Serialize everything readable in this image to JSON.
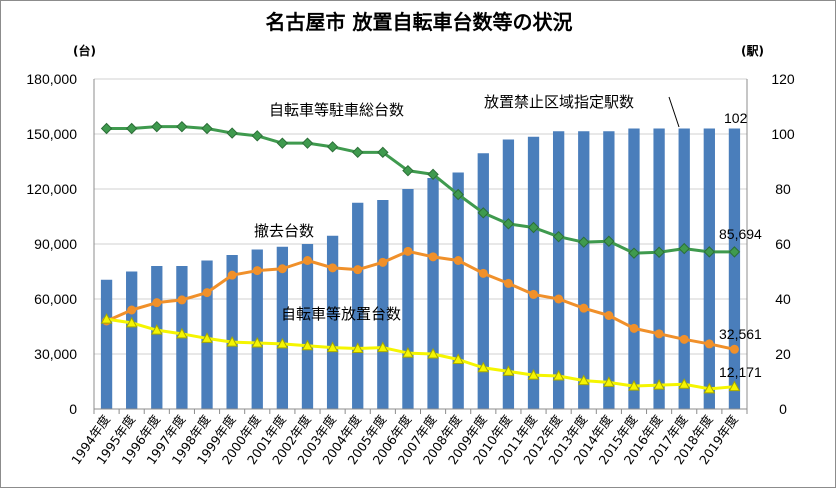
{
  "chart_data": {
    "type": "bar+line",
    "title": "名古屋市 放置自転車台数等の状況",
    "y_left_unit": "(台)",
    "y_right_unit": "(駅)",
    "ylim_left": [
      0,
      180000
    ],
    "ylim_right": [
      0,
      120
    ],
    "yticks_left": [
      "0",
      "30,000",
      "60,000",
      "90,000",
      "120,000",
      "150,000",
      "180,000"
    ],
    "yticks_right": [
      "0",
      "20",
      "40",
      "60",
      "80",
      "100",
      "120"
    ],
    "categories": [
      "1994年度",
      "1995年度",
      "1996年度",
      "1997年度",
      "1998年度",
      "1999年度",
      "2000年度",
      "2001年度",
      "2002年度",
      "2003年度",
      "2004年度",
      "2005年度",
      "2006年度",
      "2007年度",
      "2008年度",
      "2009年度",
      "2010年度",
      "2011年度",
      "2012年度",
      "2013年度",
      "2014年度",
      "2015年度",
      "2016年度",
      "2017年度",
      "2018年度",
      "2019年度"
    ],
    "grid": true,
    "series": [
      {
        "name": "放置禁止区域指定駅数",
        "type": "bar",
        "axis": "right",
        "color": "#4a7ebb",
        "values": [
          47,
          50,
          52,
          52,
          54,
          56,
          58,
          59,
          60,
          63,
          75,
          76,
          80,
          84,
          86,
          93,
          98,
          99,
          101,
          101,
          101,
          102,
          102,
          102,
          102,
          102
        ]
      },
      {
        "name": "自転車等駐車総台数",
        "type": "line",
        "axis": "left",
        "color": "#3f9a4e",
        "values": [
          153000,
          153000,
          154000,
          154000,
          153000,
          150500,
          149000,
          145000,
          145000,
          143000,
          140000,
          140000,
          130000,
          128000,
          117000,
          107000,
          101000,
          99000,
          94000,
          91000,
          91500,
          85000,
          85500,
          87500,
          85700,
          85694
        ]
      },
      {
        "name": "撤去台数",
        "type": "line",
        "axis": "left",
        "color": "#f0902a",
        "values": [
          48000,
          54000,
          58000,
          59500,
          63500,
          73000,
          75500,
          76500,
          81000,
          77000,
          76000,
          80000,
          86000,
          83000,
          81000,
          74000,
          68500,
          62500,
          60000,
          55000,
          51000,
          44000,
          41000,
          38000,
          35500,
          32561
        ]
      },
      {
        "name": "自転車等放置台数",
        "type": "line",
        "axis": "left",
        "color": "#f5f500",
        "values": [
          49000,
          47000,
          43000,
          41000,
          38500,
          36500,
          36000,
          35500,
          34500,
          33500,
          33000,
          33500,
          30500,
          30000,
          27000,
          22500,
          20500,
          18500,
          18000,
          15500,
          14500,
          12500,
          13000,
          13500,
          11000,
          12171
        ]
      }
    ],
    "annotations": {
      "bar_last_label": "102",
      "total_last_label": "85,694",
      "removed_last_label": "32,561",
      "abandoned_last_label": "12,171"
    }
  }
}
